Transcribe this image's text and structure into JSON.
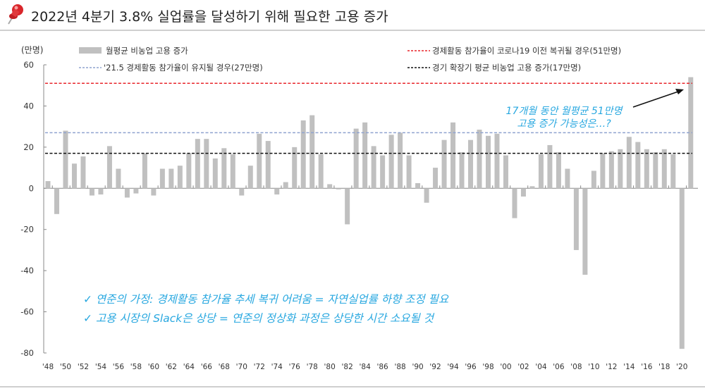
{
  "title": "2022년 4분기 3.8% 실업률을 달성하기 위해 필요한 고용 증가",
  "icons": {
    "title_icon": "pushpin-icon"
  },
  "chart_data": {
    "type": "bar",
    "unit_label": "(만명)",
    "ylim": [
      -80,
      60
    ],
    "yticks": [
      60,
      40,
      20,
      0,
      -20,
      -40,
      -60,
      -80
    ],
    "xtick_labels": [
      "'48",
      "'50",
      "'52",
      "'54",
      "'56",
      "'58",
      "'60",
      "'62",
      "'64",
      "'66",
      "'68",
      "'70",
      "'72",
      "'74",
      "'76",
      "'78",
      "'80",
      "'82",
      "'84",
      "'86",
      "'88",
      "'90",
      "'92",
      "'94",
      "'96",
      "'98",
      "'00",
      "'02",
      "'04",
      "'06",
      "'08",
      "'10",
      "'12",
      "'14",
      "'16",
      "'18",
      "'20"
    ],
    "categories": [
      1948,
      1949,
      1950,
      1951,
      1952,
      1953,
      1954,
      1955,
      1956,
      1957,
      1958,
      1959,
      1960,
      1961,
      1962,
      1963,
      1964,
      1965,
      1966,
      1967,
      1968,
      1969,
      1970,
      1971,
      1972,
      1973,
      1974,
      1975,
      1976,
      1977,
      1978,
      1979,
      1980,
      1981,
      1982,
      1983,
      1984,
      1985,
      1986,
      1987,
      1988,
      1989,
      1990,
      1991,
      1992,
      1993,
      1994,
      1995,
      1996,
      1997,
      1998,
      1999,
      2000,
      2001,
      2002,
      2003,
      2004,
      2005,
      2006,
      2007,
      2008,
      2009,
      2010,
      2011,
      2012,
      2013,
      2014,
      2015,
      2016,
      2017,
      2018,
      2019,
      2020,
      2021
    ],
    "series": [
      {
        "name": "월평균 비농업 고용 증가",
        "color": "#c0c0c0",
        "values": [
          3.5,
          -12.5,
          28,
          12,
          15.5,
          -3.5,
          -3,
          20.5,
          9.5,
          -4.5,
          -2.5,
          17,
          -3.5,
          9.5,
          9.5,
          11,
          17,
          24,
          24,
          14.5,
          19.5,
          16.5,
          -3.5,
          11,
          26.5,
          23,
          -3,
          3,
          20,
          33,
          35.5,
          16.5,
          2,
          -0.5,
          -17.5,
          29,
          32,
          20.5,
          16,
          26,
          27,
          16,
          2.5,
          -7,
          10,
          23.5,
          32,
          17.5,
          23.5,
          28.5,
          25.5,
          26.5,
          16,
          -14.5,
          -4,
          1,
          16.5,
          21,
          17.5,
          9.5,
          -30,
          -42,
          8.5,
          17,
          18,
          19,
          25,
          22.5,
          19,
          17.5,
          19,
          16.5,
          -78,
          54
        ]
      }
    ],
    "reference_lines": [
      {
        "name": "경제활동 참가율이 코로나19 이전 복귀될 경우(51만명)",
        "value": 51,
        "color": "#e8262b"
      },
      {
        "name": "'21.5 경제활동 참가율이 유지될 경우(27만명)",
        "value": 27,
        "color": "#8fa3cf"
      },
      {
        "name": "경기 확장기 평균 비농업 고용 증가(17만명)",
        "value": 17,
        "color": "#111111"
      }
    ],
    "annotation": {
      "line1": "17개월 동안 월평균 51만명",
      "line2": "고용 증가 가능성은…?",
      "color": "#29a8e0"
    },
    "notes": [
      "✓ 연준의 가정: 경제활동 참가율 추세 복귀 어려움 = 자연실업률 하향 조정 필요",
      "✓ 고용 시장의 Slack은 상당 = 연준의 정상화 과정은 상당한 시간 소요될 것"
    ],
    "grid": false
  }
}
